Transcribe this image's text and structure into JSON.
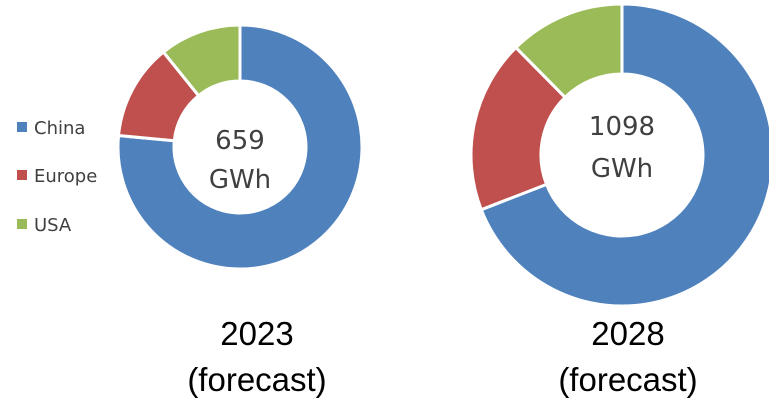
{
  "chart_data": [
    {
      "type": "pie",
      "donut": true,
      "title": "2023 (forecast)",
      "caption_lines": [
        "2023",
        "(forecast)"
      ],
      "center_label_lines": [
        "659",
        "GWh"
      ],
      "total": 659,
      "unit": "GWh",
      "categories": [
        "China",
        "Europe",
        "USA"
      ],
      "values": [
        0.765,
        0.127,
        0.108
      ],
      "colors": [
        "#4f81bd",
        "#c0504d",
        "#9bbb59"
      ],
      "legend": "left"
    },
    {
      "type": "pie",
      "donut": true,
      "title": "2028 (forecast)",
      "caption_lines": [
        "2028",
        "(forecast)"
      ],
      "center_label_lines": [
        "1098",
        "GWh"
      ],
      "total": 1098,
      "unit": "GWh",
      "categories": [
        "China",
        "Europe",
        "USA"
      ],
      "values": [
        0.691,
        0.185,
        0.124
      ],
      "colors": [
        "#4f81bd",
        "#c0504d",
        "#9bbb59"
      ],
      "legend": "none"
    }
  ],
  "legend": {
    "items": [
      {
        "label": "China",
        "color": "#4f81bd"
      },
      {
        "label": "Europe",
        "color": "#c0504d"
      },
      {
        "label": "USA",
        "color": "#9bbb59"
      }
    ]
  }
}
